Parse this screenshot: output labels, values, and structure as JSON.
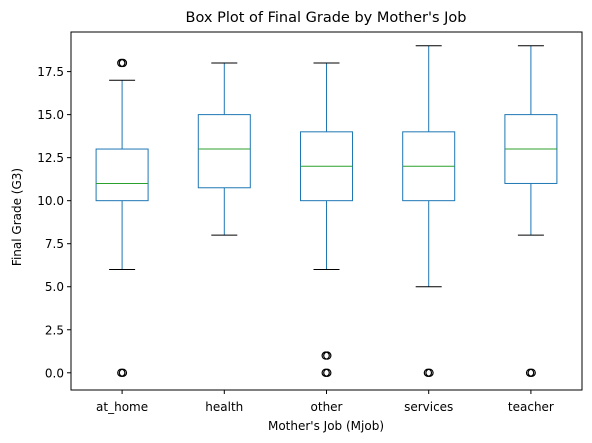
{
  "chart_data": {
    "type": "box",
    "title": "Box Plot of Final Grade by Mother's Job",
    "xlabel": "Mother's Job (Mjob)",
    "ylabel": "Final Grade (G3)",
    "ylim": [
      -1.0,
      19.8
    ],
    "yticks": [
      0.0,
      2.5,
      5.0,
      7.5,
      10.0,
      12.5,
      15.0,
      17.5
    ],
    "ytick_labels": [
      "0.0",
      "2.5",
      "5.0",
      "7.5",
      "10.0",
      "12.5",
      "15.0",
      "17.5"
    ],
    "grid": false,
    "categories": [
      "at_home",
      "health",
      "other",
      "services",
      "teacher"
    ],
    "boxes": [
      {
        "category": "at_home",
        "whisker_low": 6,
        "q1": 10,
        "median": 11,
        "q3": 13,
        "whisker_high": 17,
        "outliers": [
          18,
          0
        ]
      },
      {
        "category": "health",
        "whisker_low": 8,
        "q1": 10.75,
        "median": 13,
        "q3": 15,
        "whisker_high": 18,
        "outliers": []
      },
      {
        "category": "other",
        "whisker_low": 6,
        "q1": 10,
        "median": 12,
        "q3": 14,
        "whisker_high": 18,
        "outliers": [
          1,
          0
        ]
      },
      {
        "category": "services",
        "whisker_low": 5,
        "q1": 10,
        "median": 12,
        "q3": 14,
        "whisker_high": 19,
        "outliers": [
          0
        ]
      },
      {
        "category": "teacher",
        "whisker_low": 8,
        "q1": 11,
        "median": 13,
        "q3": 15,
        "whisker_high": 19,
        "outliers": [
          0
        ]
      }
    ],
    "colors": {
      "box": "#1f77b4",
      "median": "#2ca02c",
      "whisker": "#1f77b4",
      "cap": "#000000",
      "outlier": "#000000"
    }
  }
}
